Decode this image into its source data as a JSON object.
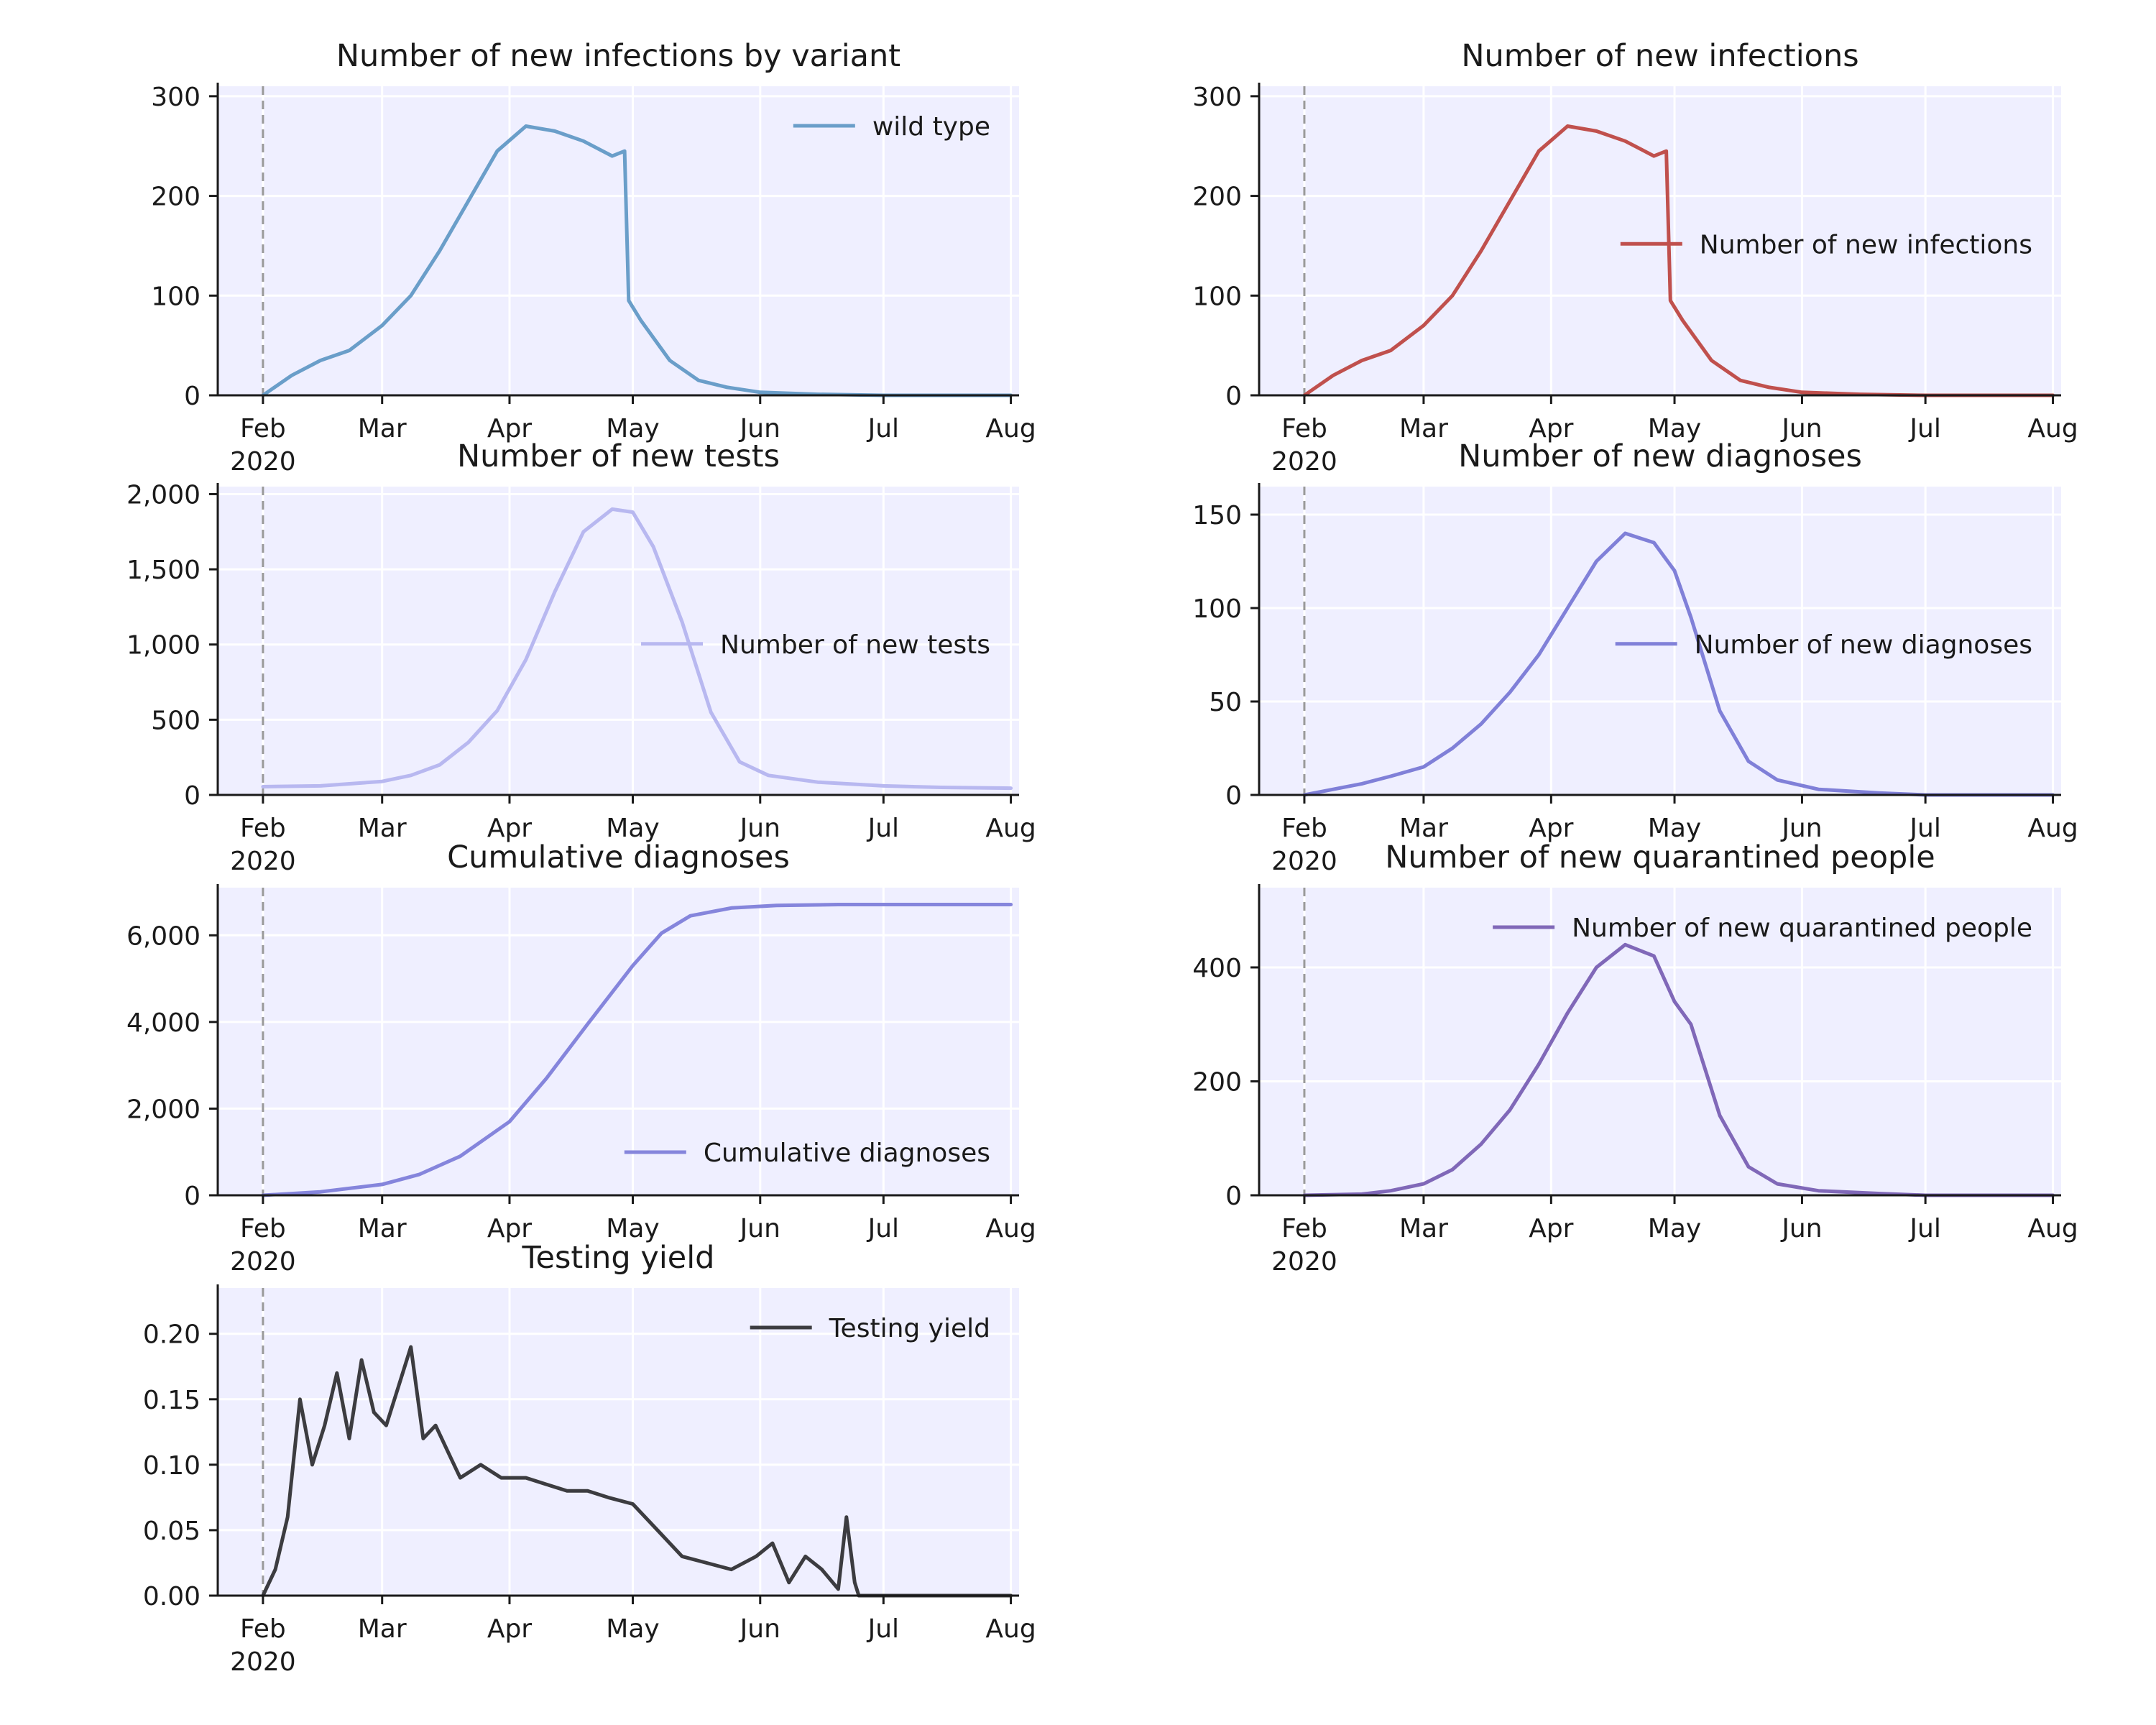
{
  "chart_data": [
    {
      "type": "line",
      "title": "Number of new infections by variant",
      "xlim": [
        "2020-01-21",
        "2020-08-03"
      ],
      "ylim": [
        0,
        310
      ],
      "x_ticks": [
        "Feb",
        "Mar",
        "Apr",
        "May",
        "Jun",
        "Jul",
        "Aug"
      ],
      "x_tick_dates": [
        "2020-02-01",
        "2020-03-01",
        "2020-04-01",
        "2020-05-01",
        "2020-06-01",
        "2020-07-01",
        "2020-08-01"
      ],
      "x_year_label": "2020",
      "y_ticks": [
        0,
        100,
        200,
        300
      ],
      "y_tick_labels": [
        "0",
        "100",
        "200",
        "300"
      ],
      "start_marker": "2020-02-01",
      "legend_position": "top-right",
      "grid": true,
      "series": [
        {
          "name": "wild type",
          "color": "#6a9ec9",
          "x": [
            "2020-02-01",
            "2020-02-08",
            "2020-02-15",
            "2020-02-22",
            "2020-03-01",
            "2020-03-08",
            "2020-03-15",
            "2020-03-22",
            "2020-03-29",
            "2020-04-05",
            "2020-04-12",
            "2020-04-19",
            "2020-04-26",
            "2020-04-29",
            "2020-04-30",
            "2020-05-03",
            "2020-05-10",
            "2020-05-17",
            "2020-05-24",
            "2020-06-01",
            "2020-06-15",
            "2020-07-01",
            "2020-08-01"
          ],
          "y": [
            0,
            20,
            35,
            45,
            70,
            100,
            145,
            195,
            245,
            270,
            265,
            255,
            240,
            245,
            95,
            75,
            35,
            15,
            8,
            3,
            1,
            0,
            0
          ]
        }
      ]
    },
    {
      "type": "line",
      "title": "Number of new infections",
      "xlim": [
        "2020-01-21",
        "2020-08-03"
      ],
      "ylim": [
        0,
        310
      ],
      "x_ticks": [
        "Feb",
        "Mar",
        "Apr",
        "May",
        "Jun",
        "Jul",
        "Aug"
      ],
      "x_tick_dates": [
        "2020-02-01",
        "2020-03-01",
        "2020-04-01",
        "2020-05-01",
        "2020-06-01",
        "2020-07-01",
        "2020-08-01"
      ],
      "x_year_label": "2020",
      "y_ticks": [
        0,
        100,
        200,
        300
      ],
      "y_tick_labels": [
        "0",
        "100",
        "200",
        "300"
      ],
      "start_marker": "2020-02-01",
      "legend_position": "center-right",
      "grid": true,
      "series": [
        {
          "name": "Number of new infections",
          "color": "#c0504d",
          "x": [
            "2020-02-01",
            "2020-02-08",
            "2020-02-15",
            "2020-02-22",
            "2020-03-01",
            "2020-03-08",
            "2020-03-15",
            "2020-03-22",
            "2020-03-29",
            "2020-04-05",
            "2020-04-12",
            "2020-04-19",
            "2020-04-26",
            "2020-04-29",
            "2020-04-30",
            "2020-05-03",
            "2020-05-10",
            "2020-05-17",
            "2020-05-24",
            "2020-06-01",
            "2020-06-15",
            "2020-07-01",
            "2020-08-01"
          ],
          "y": [
            0,
            20,
            35,
            45,
            70,
            100,
            145,
            195,
            245,
            270,
            265,
            255,
            240,
            245,
            95,
            75,
            35,
            15,
            8,
            3,
            1,
            0,
            0
          ]
        }
      ]
    },
    {
      "type": "line",
      "title": "Number of new tests",
      "xlim": [
        "2020-01-21",
        "2020-08-03"
      ],
      "ylim": [
        0,
        2050
      ],
      "x_ticks": [
        "Feb",
        "Mar",
        "Apr",
        "May",
        "Jun",
        "Jul",
        "Aug"
      ],
      "x_tick_dates": [
        "2020-02-01",
        "2020-03-01",
        "2020-04-01",
        "2020-05-01",
        "2020-06-01",
        "2020-07-01",
        "2020-08-01"
      ],
      "x_year_label": "2020",
      "y_ticks": [
        0,
        500,
        1000,
        1500,
        2000
      ],
      "y_tick_labels": [
        "0",
        "500",
        "1,000",
        "1,500",
        "2,000"
      ],
      "start_marker": "2020-02-01",
      "legend_position": "center-right",
      "grid": true,
      "series": [
        {
          "name": "Number of new tests",
          "color": "#b8b8f0",
          "x": [
            "2020-02-01",
            "2020-02-15",
            "2020-03-01",
            "2020-03-08",
            "2020-03-15",
            "2020-03-22",
            "2020-03-29",
            "2020-04-05",
            "2020-04-12",
            "2020-04-19",
            "2020-04-26",
            "2020-05-01",
            "2020-05-06",
            "2020-05-13",
            "2020-05-20",
            "2020-05-27",
            "2020-06-03",
            "2020-06-15",
            "2020-07-01",
            "2020-07-15",
            "2020-08-01"
          ],
          "y": [
            55,
            60,
            90,
            130,
            200,
            350,
            560,
            900,
            1350,
            1750,
            1900,
            1880,
            1650,
            1150,
            550,
            220,
            130,
            85,
            60,
            50,
            45
          ]
        }
      ]
    },
    {
      "type": "line",
      "title": "Number of new diagnoses",
      "xlim": [
        "2020-01-21",
        "2020-08-03"
      ],
      "ylim": [
        0,
        165
      ],
      "x_ticks": [
        "Feb",
        "Mar",
        "Apr",
        "May",
        "Jun",
        "Jul",
        "Aug"
      ],
      "x_tick_dates": [
        "2020-02-01",
        "2020-03-01",
        "2020-04-01",
        "2020-05-01",
        "2020-06-01",
        "2020-07-01",
        "2020-08-01"
      ],
      "x_year_label": "2020",
      "y_ticks": [
        0,
        50,
        100,
        150
      ],
      "y_tick_labels": [
        "0",
        "50",
        "100",
        "150"
      ],
      "start_marker": "2020-02-01",
      "legend_position": "center-right",
      "grid": true,
      "series": [
        {
          "name": "Number of new diagnoses",
          "color": "#8080d8",
          "x": [
            "2020-02-01",
            "2020-02-08",
            "2020-02-15",
            "2020-02-22",
            "2020-03-01",
            "2020-03-08",
            "2020-03-15",
            "2020-03-22",
            "2020-03-29",
            "2020-04-05",
            "2020-04-12",
            "2020-04-19",
            "2020-04-26",
            "2020-05-01",
            "2020-05-05",
            "2020-05-12",
            "2020-05-19",
            "2020-05-26",
            "2020-06-05",
            "2020-06-20",
            "2020-07-01",
            "2020-08-01"
          ],
          "y": [
            0,
            3,
            6,
            10,
            15,
            25,
            38,
            55,
            75,
            100,
            125,
            140,
            135,
            120,
            95,
            45,
            18,
            8,
            3,
            1,
            0,
            0
          ]
        }
      ]
    },
    {
      "type": "line",
      "title": "Cumulative diagnoses",
      "xlim": [
        "2020-01-21",
        "2020-08-03"
      ],
      "ylim": [
        0,
        7100
      ],
      "x_ticks": [
        "Feb",
        "Mar",
        "Apr",
        "May",
        "Jun",
        "Jul",
        "Aug"
      ],
      "x_tick_dates": [
        "2020-02-01",
        "2020-03-01",
        "2020-04-01",
        "2020-05-01",
        "2020-06-01",
        "2020-07-01",
        "2020-08-01"
      ],
      "x_year_label": "2020",
      "y_ticks": [
        0,
        2000,
        4000,
        6000
      ],
      "y_tick_labels": [
        "0",
        "2,000",
        "4,000",
        "6,000"
      ],
      "start_marker": "2020-02-01",
      "legend_position": "bottom-right",
      "grid": true,
      "series": [
        {
          "name": "Cumulative diagnoses",
          "color": "#8585dc",
          "x": [
            "2020-02-01",
            "2020-02-15",
            "2020-03-01",
            "2020-03-10",
            "2020-03-20",
            "2020-04-01",
            "2020-04-10",
            "2020-04-20",
            "2020-05-01",
            "2020-05-08",
            "2020-05-15",
            "2020-05-25",
            "2020-06-05",
            "2020-06-20",
            "2020-07-01",
            "2020-08-01"
          ],
          "y": [
            0,
            80,
            250,
            480,
            900,
            1700,
            2700,
            3950,
            5300,
            6050,
            6450,
            6630,
            6690,
            6710,
            6710,
            6710
          ]
        }
      ]
    },
    {
      "type": "line",
      "title": "Number of new quarantined people",
      "xlim": [
        "2020-01-21",
        "2020-08-03"
      ],
      "ylim": [
        0,
        540
      ],
      "x_ticks": [
        "Feb",
        "Mar",
        "Apr",
        "May",
        "Jun",
        "Jul",
        "Aug"
      ],
      "x_tick_dates": [
        "2020-02-01",
        "2020-03-01",
        "2020-04-01",
        "2020-05-01",
        "2020-06-01",
        "2020-07-01",
        "2020-08-01"
      ],
      "x_year_label": "2020",
      "y_ticks": [
        0,
        200,
        400
      ],
      "y_tick_labels": [
        "0",
        "200",
        "400"
      ],
      "start_marker": "2020-02-01",
      "legend_position": "top-right",
      "grid": true,
      "series": [
        {
          "name": "Number of new quarantined people",
          "color": "#8068b8",
          "x": [
            "2020-02-01",
            "2020-02-15",
            "2020-02-22",
            "2020-03-01",
            "2020-03-08",
            "2020-03-15",
            "2020-03-22",
            "2020-03-29",
            "2020-04-05",
            "2020-04-12",
            "2020-04-19",
            "2020-04-26",
            "2020-05-01",
            "2020-05-05",
            "2020-05-12",
            "2020-05-19",
            "2020-05-26",
            "2020-06-05",
            "2020-06-20",
            "2020-07-01",
            "2020-08-01"
          ],
          "y": [
            0,
            2,
            8,
            20,
            45,
            90,
            150,
            230,
            320,
            400,
            440,
            420,
            340,
            300,
            140,
            50,
            20,
            8,
            3,
            0,
            0
          ]
        }
      ]
    },
    {
      "type": "line",
      "title": "Testing yield",
      "xlim": [
        "2020-01-21",
        "2020-08-03"
      ],
      "ylim": [
        0,
        0.235
      ],
      "x_ticks": [
        "Feb",
        "Mar",
        "Apr",
        "May",
        "Jun",
        "Jul",
        "Aug"
      ],
      "x_tick_dates": [
        "2020-02-01",
        "2020-03-01",
        "2020-04-01",
        "2020-05-01",
        "2020-06-01",
        "2020-07-01",
        "2020-08-01"
      ],
      "x_year_label": "2020",
      "y_ticks": [
        0,
        0.05,
        0.1,
        0.15,
        0.2
      ],
      "y_tick_labels": [
        "0.00",
        "0.05",
        "0.10",
        "0.15",
        "0.20"
      ],
      "start_marker": "2020-02-01",
      "legend_position": "top-right",
      "grid": true,
      "series": [
        {
          "name": "Testing yield",
          "color": "#3c3c40",
          "x": [
            "2020-02-01",
            "2020-02-04",
            "2020-02-07",
            "2020-02-10",
            "2020-02-13",
            "2020-02-16",
            "2020-02-19",
            "2020-02-22",
            "2020-02-25",
            "2020-02-28",
            "2020-03-02",
            "2020-03-05",
            "2020-03-08",
            "2020-03-11",
            "2020-03-14",
            "2020-03-17",
            "2020-03-20",
            "2020-03-25",
            "2020-03-30",
            "2020-04-05",
            "2020-04-10",
            "2020-04-15",
            "2020-04-20",
            "2020-04-25",
            "2020-05-01",
            "2020-05-07",
            "2020-05-13",
            "2020-05-19",
            "2020-05-25",
            "2020-05-31",
            "2020-06-04",
            "2020-06-08",
            "2020-06-12",
            "2020-06-16",
            "2020-06-20",
            "2020-06-22",
            "2020-06-24",
            "2020-06-25",
            "2020-07-01",
            "2020-08-01"
          ],
          "y": [
            0,
            0.02,
            0.06,
            0.15,
            0.1,
            0.13,
            0.17,
            0.12,
            0.18,
            0.14,
            0.13,
            0.16,
            0.19,
            0.12,
            0.13,
            0.11,
            0.09,
            0.1,
            0.09,
            0.09,
            0.085,
            0.08,
            0.08,
            0.075,
            0.07,
            0.05,
            0.03,
            0.025,
            0.02,
            0.03,
            0.04,
            0.01,
            0.03,
            0.02,
            0.005,
            0.06,
            0.01,
            0,
            0,
            0
          ]
        }
      ]
    }
  ]
}
